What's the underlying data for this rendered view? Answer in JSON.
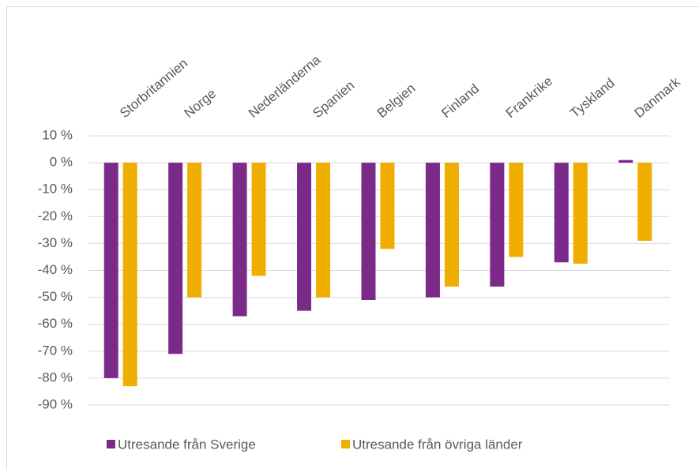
{
  "chart_data": {
    "type": "bar",
    "categories": [
      "Storbritannien",
      "Norge",
      "Nederländerna",
      "Spanien",
      "Belgien",
      "Finland",
      "Frankrike",
      "Tyskland",
      "Danmark"
    ],
    "series": [
      {
        "name": "Utresande från Sverige",
        "color": "#7b2a8a",
        "values": [
          -80,
          -71,
          -57,
          -55,
          -51,
          -50,
          -46,
          -37,
          1
        ]
      },
      {
        "name": "Utresande från övriga länder",
        "color": "#f0ae00",
        "values": [
          -83,
          -50,
          -42,
          -50,
          -32,
          -46,
          -35,
          -37.5,
          -29
        ]
      }
    ],
    "ylim": [
      -90,
      10
    ],
    "yticks": [
      {
        "value": 10,
        "label": "10 %"
      },
      {
        "value": 0,
        "label": "0 %"
      },
      {
        "value": -10,
        "label": "-10 %"
      },
      {
        "value": -20,
        "label": "-20 %"
      },
      {
        "value": -30,
        "label": "-30 %"
      },
      {
        "value": -40,
        "label": "-40 %"
      },
      {
        "value": -50,
        "label": "-50 %"
      },
      {
        "value": -60,
        "label": "-60 %"
      },
      {
        "value": -70,
        "label": "-70 %"
      },
      {
        "value": -80,
        "label": "-80 %"
      },
      {
        "value": -90,
        "label": "-90 %"
      }
    ],
    "grid": true,
    "legend": "bottom"
  }
}
